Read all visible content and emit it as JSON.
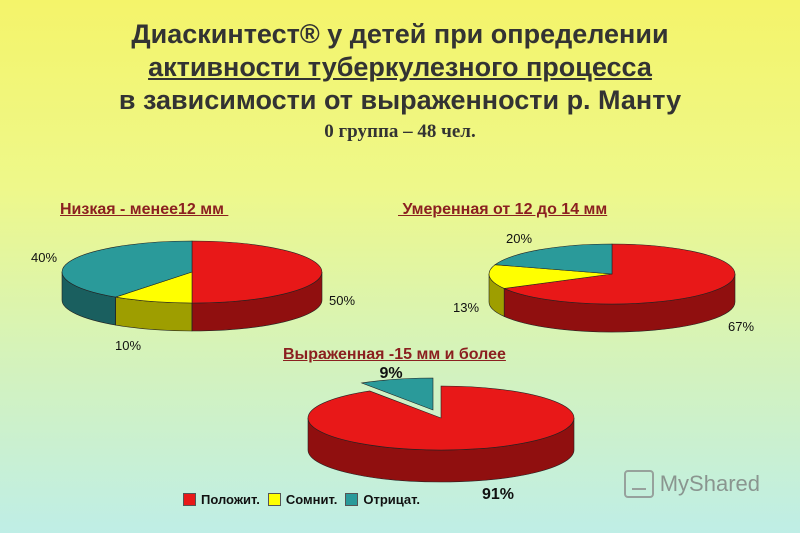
{
  "title": {
    "line1": "Диаскинтест® у детей  при определении",
    "line2": "активности туберкулезного процесса",
    "line3": "в зависимости от выраженности р. Манту",
    "line4": "0 группа – 48 чел."
  },
  "colors": {
    "positive": "#e81818",
    "doubtful": "#ffff00",
    "negative": "#2a9a9a"
  },
  "legend": [
    {
      "label": "Положит.",
      "color_key": "positive"
    },
    {
      "label": "Сомнит.",
      "color_key": "doubtful"
    },
    {
      "label": "Отрицат.",
      "color_key": "negative"
    }
  ],
  "chart_data": [
    {
      "type": "pie",
      "title": "Низкая - менее12 мм ",
      "slices": [
        {
          "series": "Положит.",
          "value": 50,
          "label": "50%"
        },
        {
          "series": "Сомнит.",
          "value": 10,
          "label": "10%"
        },
        {
          "series": "Отрицат.",
          "value": 40,
          "label": "40%"
        }
      ]
    },
    {
      "type": "pie",
      "title": " Умеренная от 12 до 14 мм",
      "slices": [
        {
          "series": "Положит.",
          "value": 67,
          "label": "67%"
        },
        {
          "series": "Сомнит.",
          "value": 13,
          "label": "13%"
        },
        {
          "series": "Отрицат.",
          "value": 20,
          "label": "20%"
        }
      ]
    },
    {
      "type": "pie",
      "title": "Выраженная -15 мм и более",
      "slices": [
        {
          "series": "Положит.",
          "value": 91,
          "label": "91%"
        },
        {
          "series": "Отрицат.",
          "value": 9,
          "label": "9%"
        }
      ]
    }
  ],
  "watermark": "MyShared"
}
